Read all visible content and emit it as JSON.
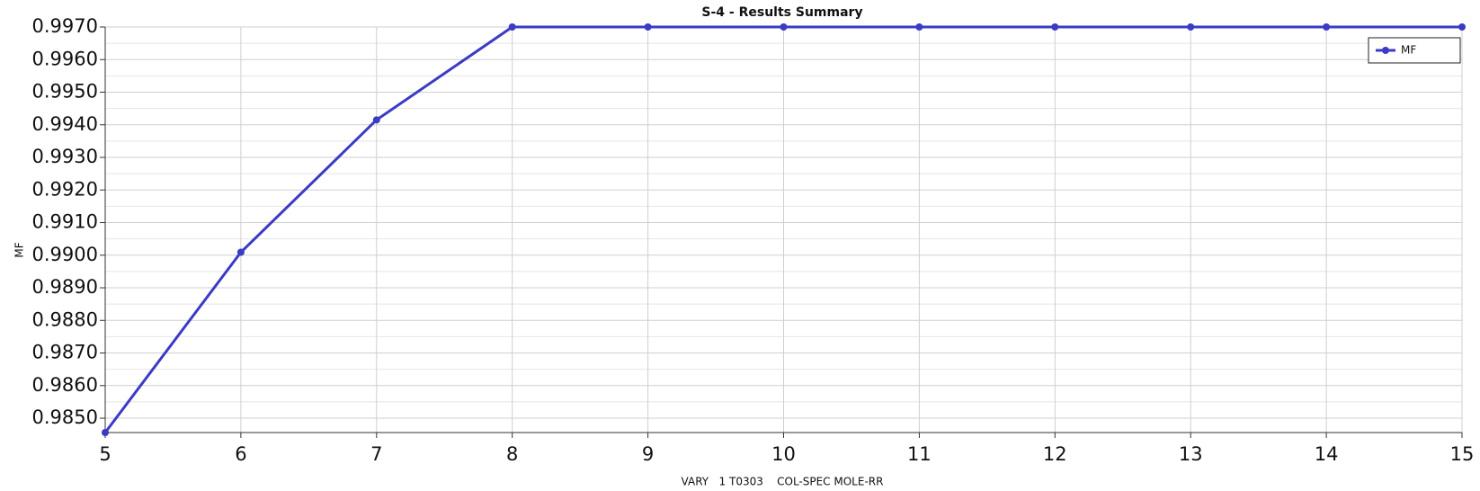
{
  "chart_data": {
    "type": "line",
    "title": "S-4 - Results Summary",
    "x_label": "VARY   1 T0303    COL-SPEC MOLE-RR",
    "y_label": "MF",
    "x": [
      5,
      6,
      7,
      8,
      9,
      10,
      11,
      12,
      13,
      14,
      15
    ],
    "series": [
      {
        "name": "MF",
        "color": "#3b3bc4",
        "values": [
          0.98456,
          0.99009,
          0.99415,
          0.997,
          0.997,
          0.997,
          0.997,
          0.997,
          0.997,
          0.997,
          0.997
        ]
      }
    ],
    "xlim": [
      5,
      15
    ],
    "xticks": [
      5,
      6,
      7,
      8,
      9,
      10,
      11,
      12,
      13,
      14,
      15
    ],
    "ylim": [
      0.98456,
      0.997
    ],
    "yticks": [
      {
        "value": 0.985,
        "label": "0.9850"
      },
      {
        "value": 0.986,
        "label": "0.9860"
      },
      {
        "value": 0.987,
        "label": "0.9870"
      },
      {
        "value": 0.988,
        "label": "0.9880"
      },
      {
        "value": 0.989,
        "label": "0.9890"
      },
      {
        "value": 0.99,
        "label": "0.9900"
      },
      {
        "value": 0.991,
        "label": "0.9910"
      },
      {
        "value": 0.992,
        "label": "0.9920"
      },
      {
        "value": 0.993,
        "label": "0.9930"
      },
      {
        "value": 0.994,
        "label": "0.9940"
      },
      {
        "value": 0.995,
        "label": "0.9950"
      },
      {
        "value": 0.996,
        "label": "0.9960"
      },
      {
        "value": 0.997,
        "label": "0.9970"
      }
    ],
    "grid": true,
    "legend": "upper right"
  }
}
